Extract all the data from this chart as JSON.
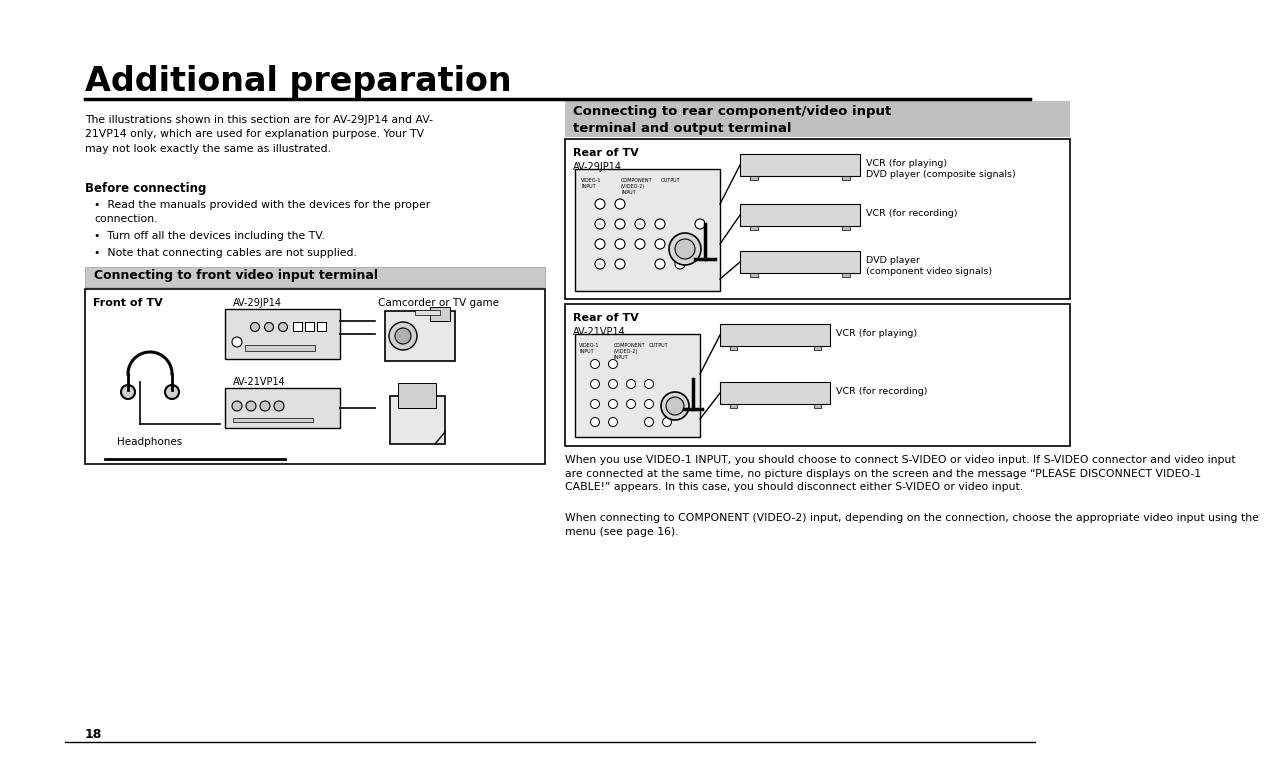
{
  "title": "Additional preparation",
  "bg_color": "#ffffff",
  "body_text_intro": "The illustrations shown in this section are for AV-29JP14 and AV-\n21VP14 only, which are used for explanation purpose. Your TV\nmay not look exactly the same as illustrated.",
  "before_connecting_title": "Before connecting",
  "before_connecting_items": [
    "Read the manuals provided with the devices for the proper\nconnection.",
    "Turn off all the devices including the TV.",
    "Note that connecting cables are not supplied."
  ],
  "section_left_title": "Connecting to front video input terminal",
  "section_right_title": "Connecting to rear component/video input\nterminal and output terminal",
  "front_box_label": "Front of TV",
  "front_model1": "AV-29JP14",
  "front_model2": "AV-21VP14",
  "front_device": "Camcorder or TV game",
  "headphones_label": "Headphones",
  "rear_box1_label": "Rear of TV",
  "rear_box1_model": "AV-29JP14",
  "rear_box1_devices": [
    "VCR (for playing)\nDVD player (composite signals)",
    "VCR (for recording)",
    "DVD player\n(component video signals)"
  ],
  "rear_box2_label": "Rear of TV",
  "rear_box2_model": "AV-21VP14",
  "rear_box2_devices": [
    "VCR (for playing)",
    "VCR (for recording)"
  ],
  "footer_text1": "When you use VIDEO-1 INPUT, you should choose to connect S-VIDEO or video input. If S-VIDEO connector and video input\nare connected at the same time, no picture displays on the screen and the message “PLEASE DISCONNECT VIDEO-1\nCABLE!” appears. In this case, you should disconnect either S-VIDEO or video input.",
  "footer_text2": "When connecting to COMPONENT (VIDEO-2) input, depending on the connection, choose the appropriate video input using the\nmenu (see page 16).",
  "page_number": "18"
}
